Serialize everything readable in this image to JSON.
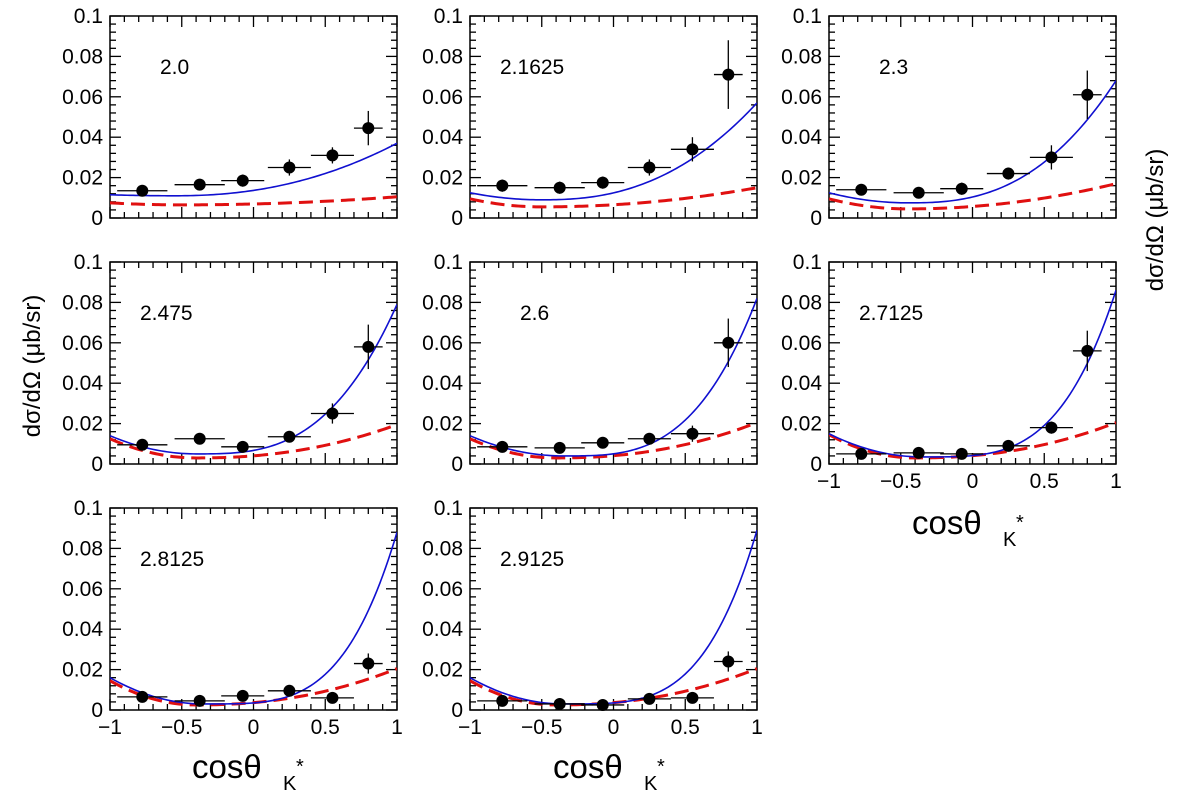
{
  "figure": {
    "y_axis_label": "dσ/dΩ  (μb/sr)",
    "x_axis_label": "cosθ",
    "x_axis_subscript": "K",
    "x_axis_superscript": "*"
  },
  "colors": {
    "model_total": "#1010d0",
    "model_component": "#e01010",
    "data": "#000000"
  },
  "chart_data": [
    {
      "type": "scatter",
      "energy_label": "2.0",
      "xlim": [
        -1,
        1
      ],
      "ylim": [
        0,
        0.1
      ],
      "x_ticks": [
        "−1",
        "−0.5",
        "0",
        "0.5",
        "1"
      ],
      "y_ticks": [
        "0",
        "0.02",
        "0.04",
        "0.06",
        "0.08",
        "0.1"
      ],
      "points": [
        {
          "x": -0.775,
          "y": 0.0135,
          "xerr": 0.175,
          "yerr": 0.002
        },
        {
          "x": -0.375,
          "y": 0.0165,
          "xerr": 0.175,
          "yerr": 0.0025
        },
        {
          "x": -0.075,
          "y": 0.0185,
          "xerr": 0.15,
          "yerr": 0.003
        },
        {
          "x": 0.25,
          "y": 0.025,
          "xerr": 0.15,
          "yerr": 0.004
        },
        {
          "x": 0.55,
          "y": 0.031,
          "xerr": 0.15,
          "yerr": 0.004
        },
        {
          "x": 0.8,
          "y": 0.0445,
          "xerr": 0.1,
          "yerr": 0.0085
        }
      ],
      "curve_solid": {
        "a": 0.0275,
        "b": 0.0285,
        "c": 0.0135,
        "d": 0.0,
        "e": 0.0
      },
      "curve_dashed": {
        "a": 0.007,
        "b": 0.006,
        "c": 0.0035,
        "d": 0.0,
        "e": 0.0
      }
    },
    {
      "type": "scatter",
      "energy_label": "2.1625",
      "xlim": [
        -1,
        1
      ],
      "ylim": [
        0,
        0.1
      ],
      "x_ticks": [
        "−1",
        "−0.5",
        "0",
        "0.5",
        "1"
      ],
      "y_ticks": [
        "0",
        "0.02",
        "0.04",
        "0.06",
        "0.08",
        "0.1"
      ],
      "points": [
        {
          "x": -0.775,
          "y": 0.016,
          "xerr": 0.175,
          "yerr": 0.003
        },
        {
          "x": -0.375,
          "y": 0.015,
          "xerr": 0.175,
          "yerr": 0.003
        },
        {
          "x": -0.075,
          "y": 0.0175,
          "xerr": 0.15,
          "yerr": 0.003
        },
        {
          "x": 0.25,
          "y": 0.025,
          "xerr": 0.15,
          "yerr": 0.004
        },
        {
          "x": 0.55,
          "y": 0.034,
          "xerr": 0.15,
          "yerr": 0.006
        },
        {
          "x": 0.8,
          "y": 0.071,
          "xerr": 0.1,
          "yerr": 0.017
        }
      ],
      "curve_solid": {
        "a": 0.0305,
        "b": 0.0225,
        "c": 0.0,
        "d": 0.0,
        "e": 0.0
      },
      "curve_dashed": {
        "a": 0.0095,
        "b": 0.0045,
        "c": 0.0,
        "d": 0.0,
        "e": 0.0
      }
    },
    {
      "type": "scatter",
      "energy_label": "2.3",
      "xlim": [
        -1,
        1
      ],
      "ylim": [
        0,
        0.1
      ],
      "x_ticks": [
        "−1",
        "−0.5",
        "0",
        "0.5",
        "1"
      ],
      "y_ticks": [
        "0",
        "0.02",
        "0.04",
        "0.06",
        "0.08",
        "0.1"
      ],
      "points": [
        {
          "x": -0.775,
          "y": 0.014,
          "xerr": 0.175,
          "yerr": 0.002
        },
        {
          "x": -0.375,
          "y": 0.0125,
          "xerr": 0.175,
          "yerr": 0.002
        },
        {
          "x": -0.075,
          "y": 0.0145,
          "xerr": 0.15,
          "yerr": 0.003
        },
        {
          "x": 0.25,
          "y": 0.022,
          "xerr": 0.15,
          "yerr": 0.003
        },
        {
          "x": 0.55,
          "y": 0.03,
          "xerr": 0.15,
          "yerr": 0.006
        },
        {
          "x": 0.8,
          "y": 0.061,
          "xerr": 0.1,
          "yerr": 0.012
        }
      ],
      "curve_solid": {
        "a": 0.0295,
        "b": 0.021,
        "c": 0.0,
        "d": 0.0,
        "e": 0.0
      },
      "curve_dashed": {
        "a": 0.0085,
        "b": 0.004,
        "c": 0.0,
        "d": 0.0,
        "e": 0.0
      }
    },
    {
      "type": "scatter",
      "energy_label": "2.475",
      "xlim": [
        -1,
        1
      ],
      "ylim": [
        0,
        0.1
      ],
      "x_ticks": [
        "−1",
        "−0.5",
        "0",
        "0.5",
        "1"
      ],
      "y_ticks": [
        "0",
        "0.02",
        "0.04",
        "0.06",
        "0.08",
        "0.1"
      ],
      "points": [
        {
          "x": -0.775,
          "y": 0.0095,
          "xerr": 0.175,
          "yerr": 0.002
        },
        {
          "x": -0.375,
          "y": 0.0125,
          "xerr": 0.175,
          "yerr": 0.002
        },
        {
          "x": -0.075,
          "y": 0.0085,
          "xerr": 0.15,
          "yerr": 0.002
        },
        {
          "x": 0.25,
          "y": 0.0135,
          "xerr": 0.15,
          "yerr": 0.002
        },
        {
          "x": 0.55,
          "y": 0.025,
          "xerr": 0.15,
          "yerr": 0.005
        },
        {
          "x": 0.8,
          "y": 0.058,
          "xerr": 0.1,
          "yerr": 0.011
        }
      ],
      "curve_solid": {
        "a": 0.0335,
        "b": 0.032,
        "c": 0.0,
        "d": 0.0,
        "e": 0.0
      },
      "curve_dashed": {
        "a": 0.0115,
        "b": 0.008,
        "c": 0.0,
        "d": 0.0,
        "e": 0.0
      }
    },
    {
      "type": "scatter",
      "energy_label": "2.6",
      "xlim": [
        -1,
        1
      ],
      "ylim": [
        0,
        0.1
      ],
      "x_ticks": [
        "−1",
        "−0.5",
        "0",
        "0.5",
        "1"
      ],
      "y_ticks": [
        "0",
        "0.02",
        "0.04",
        "0.06",
        "0.08",
        "0.1"
      ],
      "points": [
        {
          "x": -0.775,
          "y": 0.0085,
          "xerr": 0.175,
          "yerr": 0.002
        },
        {
          "x": -0.375,
          "y": 0.008,
          "xerr": 0.175,
          "yerr": 0.002
        },
        {
          "x": -0.075,
          "y": 0.0105,
          "xerr": 0.15,
          "yerr": 0.002
        },
        {
          "x": 0.25,
          "y": 0.0125,
          "xerr": 0.15,
          "yerr": 0.002
        },
        {
          "x": 0.55,
          "y": 0.015,
          "xerr": 0.15,
          "yerr": 0.004
        },
        {
          "x": 0.8,
          "y": 0.06,
          "xerr": 0.1,
          "yerr": 0.012
        }
      ],
      "curve_solid": {
        "a": 0.034,
        "b": 0.033,
        "c": 0.0,
        "d": 0.0,
        "e": 0.0
      },
      "curve_dashed": {
        "a": 0.0115,
        "b": 0.008,
        "c": 0.0,
        "d": 0.0,
        "e": 0.0
      }
    },
    {
      "type": "scatter",
      "energy_label": "2.7125",
      "xlim": [
        -1,
        1
      ],
      "ylim": [
        0,
        0.1
      ],
      "x_ticks": [
        "−1",
        "−0.5",
        "0",
        "0.5",
        "1"
      ],
      "y_ticks": [
        "0",
        "0.02",
        "0.04",
        "0.06",
        "0.08",
        "0.1"
      ],
      "points": [
        {
          "x": -0.775,
          "y": 0.005,
          "xerr": 0.175,
          "yerr": 0.0015
        },
        {
          "x": -0.375,
          "y": 0.0055,
          "xerr": 0.175,
          "yerr": 0.0015
        },
        {
          "x": -0.075,
          "y": 0.005,
          "xerr": 0.15,
          "yerr": 0.0015
        },
        {
          "x": 0.25,
          "y": 0.009,
          "xerr": 0.15,
          "yerr": 0.002
        },
        {
          "x": 0.55,
          "y": 0.018,
          "xerr": 0.15,
          "yerr": 0.003
        },
        {
          "x": 0.8,
          "y": 0.056,
          "xerr": 0.1,
          "yerr": 0.01
        }
      ],
      "curve_solid": {
        "a": 0.0395,
        "b": 0.0405,
        "c": 0.0,
        "d": 0.0,
        "e": 0.0
      },
      "curve_dashed": {
        "a": 0.0135,
        "b": 0.0095,
        "c": 0.0,
        "d": 0.0,
        "e": 0.0
      }
    },
    {
      "type": "scatter",
      "energy_label": "2.8125",
      "xlim": [
        -1,
        1
      ],
      "ylim": [
        0,
        0.1
      ],
      "x_ticks": [
        "−1",
        "−0.5",
        "0",
        "0.5",
        "1"
      ],
      "y_ticks": [
        "0",
        "0.02",
        "0.04",
        "0.06",
        "0.08",
        "0.1"
      ],
      "points": [
        {
          "x": -0.775,
          "y": 0.0065,
          "xerr": 0.175,
          "yerr": 0.0015
        },
        {
          "x": -0.375,
          "y": 0.0045,
          "xerr": 0.175,
          "yerr": 0.0015
        },
        {
          "x": -0.075,
          "y": 0.007,
          "xerr": 0.15,
          "yerr": 0.0015
        },
        {
          "x": 0.25,
          "y": 0.0095,
          "xerr": 0.15,
          "yerr": 0.002
        },
        {
          "x": 0.55,
          "y": 0.006,
          "xerr": 0.15,
          "yerr": 0.002
        },
        {
          "x": 0.8,
          "y": 0.023,
          "xerr": 0.1,
          "yerr": 0.005
        }
      ],
      "curve_solid": {
        "a": 0.0415,
        "b": 0.043,
        "c": 0.0,
        "d": 0.0,
        "e": 0.0
      },
      "curve_dashed": {
        "a": 0.0135,
        "b": 0.0095,
        "c": 0.0,
        "d": 0.0,
        "e": 0.0
      }
    },
    {
      "type": "scatter",
      "energy_label": "2.9125",
      "xlim": [
        -1,
        1
      ],
      "ylim": [
        0,
        0.1
      ],
      "x_ticks": [
        "−1",
        "−0.5",
        "0",
        "0.5",
        "1"
      ],
      "y_ticks": [
        "0",
        "0.02",
        "0.04",
        "0.06",
        "0.08",
        "0.1"
      ],
      "points": [
        {
          "x": -0.775,
          "y": 0.0045,
          "xerr": 0.175,
          "yerr": 0.0015
        },
        {
          "x": -0.375,
          "y": 0.003,
          "xerr": 0.175,
          "yerr": 0.0015
        },
        {
          "x": -0.075,
          "y": 0.0025,
          "xerr": 0.15,
          "yerr": 0.0015
        },
        {
          "x": 0.25,
          "y": 0.0055,
          "xerr": 0.15,
          "yerr": 0.0015
        },
        {
          "x": 0.55,
          "y": 0.006,
          "xerr": 0.15,
          "yerr": 0.002
        },
        {
          "x": 0.8,
          "y": 0.024,
          "xerr": 0.1,
          "yerr": 0.005
        }
      ],
      "curve_solid": {
        "a": 0.0425,
        "b": 0.0435,
        "c": 0.0,
        "d": 0.0,
        "e": 0.0
      },
      "curve_dashed": {
        "a": 0.0135,
        "b": 0.0095,
        "c": 0.0,
        "d": 0.0,
        "e": 0.0
      }
    }
  ]
}
